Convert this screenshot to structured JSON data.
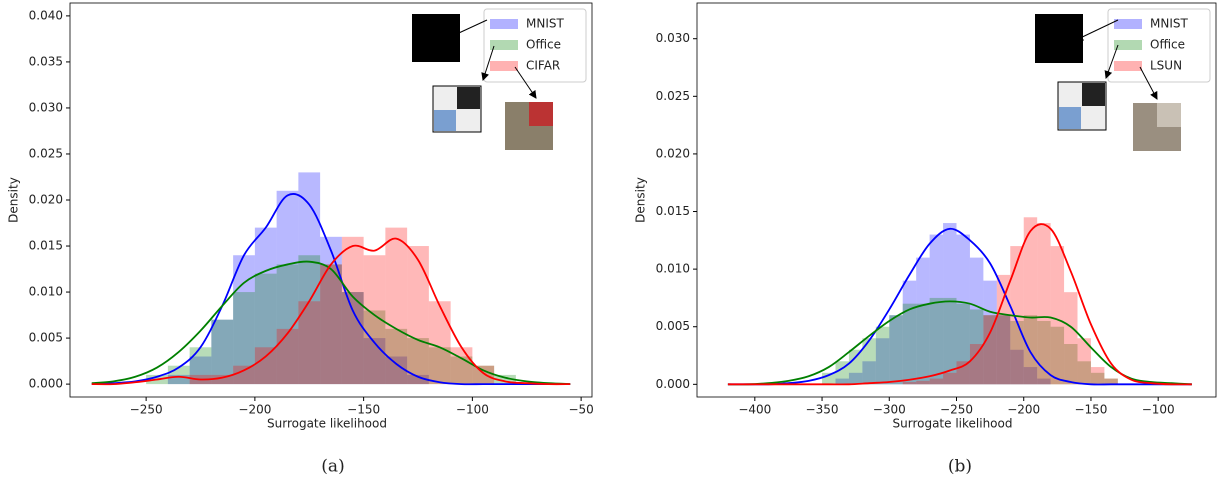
{
  "chart_data": [
    {
      "type": "histogram",
      "xlabel": "Surrogate likelihood",
      "ylabel": "Density",
      "caption": "(a)",
      "xlim": [
        -285,
        -45
      ],
      "ylim": [
        -0.0014,
        0.0414
      ],
      "xticks": [
        {
          "value": -250,
          "label": "−250"
        },
        {
          "value": -200,
          "label": "−200"
        },
        {
          "value": -150,
          "label": "−150"
        },
        {
          "value": -100,
          "label": "−100"
        },
        {
          "value": -50,
          "label": "−50"
        }
      ],
      "yticks": [
        {
          "value": 0,
          "label": "0.000"
        },
        {
          "value": 0.005,
          "label": "0.005"
        },
        {
          "value": 0.01,
          "label": "0.010"
        },
        {
          "value": 0.015,
          "label": "0.015"
        },
        {
          "value": 0.02,
          "label": "0.020"
        },
        {
          "value": 0.025,
          "label": "0.025"
        },
        {
          "value": 0.03,
          "label": "0.030"
        },
        {
          "value": 0.035,
          "label": "0.035"
        },
        {
          "value": 0.04,
          "label": "0.040"
        }
      ],
      "legend": "upper right",
      "bins": [
        -250,
        -240,
        -230,
        -220,
        -210,
        -200,
        -190,
        -180,
        -170,
        -160,
        -150,
        -140,
        -130,
        -120,
        -110,
        -100,
        -90,
        -80
      ],
      "kde_x": [
        -275,
        -265,
        -255,
        -245,
        -235,
        -225,
        -215,
        -205,
        -195,
        -185,
        -175,
        -165,
        -155,
        -145,
        -135,
        -125,
        -115,
        -105,
        -95,
        -85,
        -75,
        -65,
        -55
      ],
      "series": [
        {
          "name": "MNIST",
          "color": "#0000ff",
          "values": [
            0,
            0.001,
            0.003,
            0.007,
            0.014,
            0.017,
            0.021,
            0.023,
            0.016,
            0.01,
            0.005,
            0.003,
            0.001,
            0,
            0,
            0,
            0
          ],
          "kde": [
            0,
            0.0001,
            0.0003,
            0.0008,
            0.0018,
            0.004,
            0.0085,
            0.014,
            0.017,
            0.0205,
            0.0195,
            0.0145,
            0.008,
            0.0045,
            0.0022,
            0.0008,
            0.0002,
            0,
            0,
            0,
            0,
            0,
            0
          ]
        },
        {
          "name": "Office",
          "color": "#008000",
          "values": [
            0.001,
            0.002,
            0.004,
            0.007,
            0.01,
            0.012,
            0.013,
            0.014,
            0.013,
            0.01,
            0.008,
            0.006,
            0.005,
            0.004,
            0.003,
            0.002,
            0.001
          ],
          "kde": [
            0.0001,
            0.0003,
            0.0008,
            0.0018,
            0.0035,
            0.0058,
            0.0085,
            0.011,
            0.0123,
            0.013,
            0.0133,
            0.0125,
            0.0095,
            0.0075,
            0.006,
            0.0048,
            0.004,
            0.0028,
            0.0015,
            0.0007,
            0.0003,
            0.0001,
            0
          ]
        },
        {
          "name": "CIFAR",
          "color": "#ff0000",
          "values": [
            0,
            0,
            0.001,
            0.001,
            0.002,
            0.004,
            0.006,
            0.009,
            0.013,
            0.016,
            0.014,
            0.017,
            0.015,
            0.009,
            0.004,
            0.002,
            0
          ],
          "kde": [
            0,
            0,
            0.0002,
            0.0005,
            0.0008,
            0.0005,
            0.0007,
            0.0015,
            0.003,
            0.0055,
            0.009,
            0.013,
            0.015,
            0.0145,
            0.0158,
            0.0135,
            0.0085,
            0.004,
            0.0012,
            0.0003,
            0.0001,
            0,
            0
          ]
        }
      ]
    },
    {
      "type": "histogram",
      "xlabel": "Surrogate likelihood",
      "ylabel": "Density",
      "caption": "(b)",
      "xlim": [
        -443,
        -57
      ],
      "ylim": [
        -0.0011,
        0.0331
      ],
      "xticks": [
        {
          "value": -400,
          "label": "−400"
        },
        {
          "value": -350,
          "label": "−350"
        },
        {
          "value": -300,
          "label": "−300"
        },
        {
          "value": -250,
          "label": "−250"
        },
        {
          "value": -200,
          "label": "−200"
        },
        {
          "value": -150,
          "label": "−150"
        },
        {
          "value": -100,
          "label": "−100"
        }
      ],
      "yticks": [
        {
          "value": 0,
          "label": "0.000"
        },
        {
          "value": 0.005,
          "label": "0.005"
        },
        {
          "value": 0.01,
          "label": "0.010"
        },
        {
          "value": 0.015,
          "label": "0.015"
        },
        {
          "value": 0.02,
          "label": "0.020"
        },
        {
          "value": 0.025,
          "label": "0.025"
        },
        {
          "value": 0.03,
          "label": "0.030"
        }
      ],
      "legend": "upper right",
      "bins": [
        -350,
        -340,
        -330,
        -320,
        -310,
        -300,
        -290,
        -280,
        -270,
        -260,
        -250,
        -240,
        -230,
        -220,
        -210,
        -200,
        -190,
        -180,
        -170,
        -160,
        -150,
        -140,
        -130
      ],
      "kde_x": [
        -420,
        -405,
        -390,
        -375,
        -360,
        -345,
        -330,
        -315,
        -300,
        -285,
        -270,
        -255,
        -240,
        -225,
        -210,
        -195,
        -180,
        -165,
        -150,
        -135,
        -120,
        -105,
        -90,
        -75
      ],
      "series": [
        {
          "name": "MNIST",
          "color": "#0000ff",
          "values": [
            0,
            0.0005,
            0.001,
            0.002,
            0.004,
            0.006,
            0.009,
            0.011,
            0.013,
            0.014,
            0.013,
            0.011,
            0.009,
            0.006,
            0.003,
            0.0015,
            0.0005,
            0,
            0,
            0,
            0,
            0
          ],
          "kde": [
            0,
            0,
            0,
            0.0001,
            0.0003,
            0.0008,
            0.0018,
            0.0038,
            0.0065,
            0.0095,
            0.0122,
            0.0135,
            0.0125,
            0.0105,
            0.0068,
            0.0028,
            0.0008,
            0.0002,
            0,
            0,
            0,
            0,
            0,
            0
          ]
        },
        {
          "name": "Office",
          "color": "#008000",
          "values": [
            0.001,
            0.002,
            0.003,
            0.004,
            0.005,
            0.006,
            0.007,
            0.007,
            0.0075,
            0.0075,
            0.007,
            0.0065,
            0.006,
            0.006,
            0.0055,
            0.006,
            0.0055,
            0.005,
            0.0035,
            0.002,
            0.001,
            0.0005
          ],
          "kde": [
            0,
            0,
            0.0001,
            0.0003,
            0.0007,
            0.0015,
            0.0028,
            0.0042,
            0.0055,
            0.0065,
            0.007,
            0.0072,
            0.007,
            0.0063,
            0.006,
            0.0058,
            0.0058,
            0.005,
            0.0032,
            0.0015,
            0.0005,
            0.0002,
            0.0001,
            0
          ]
        },
        {
          "name": "LSUN",
          "color": "#ff0000",
          "values": [
            0,
            0,
            0,
            0,
            0,
            0,
            0.0002,
            0.0003,
            0.0005,
            0.001,
            0.002,
            0.0035,
            0.006,
            0.0095,
            0.012,
            0.0145,
            0.014,
            0.012,
            0.008,
            0.004,
            0.0015,
            0.0005
          ],
          "kde": [
            0,
            0,
            0,
            0,
            0,
            0,
            0,
            0.0001,
            0.0002,
            0.0004,
            0.0007,
            0.0012,
            0.002,
            0.0045,
            0.009,
            0.0133,
            0.0135,
            0.0098,
            0.0052,
            0.0018,
            0.0004,
            0.0001,
            0,
            0
          ]
        }
      ]
    }
  ]
}
